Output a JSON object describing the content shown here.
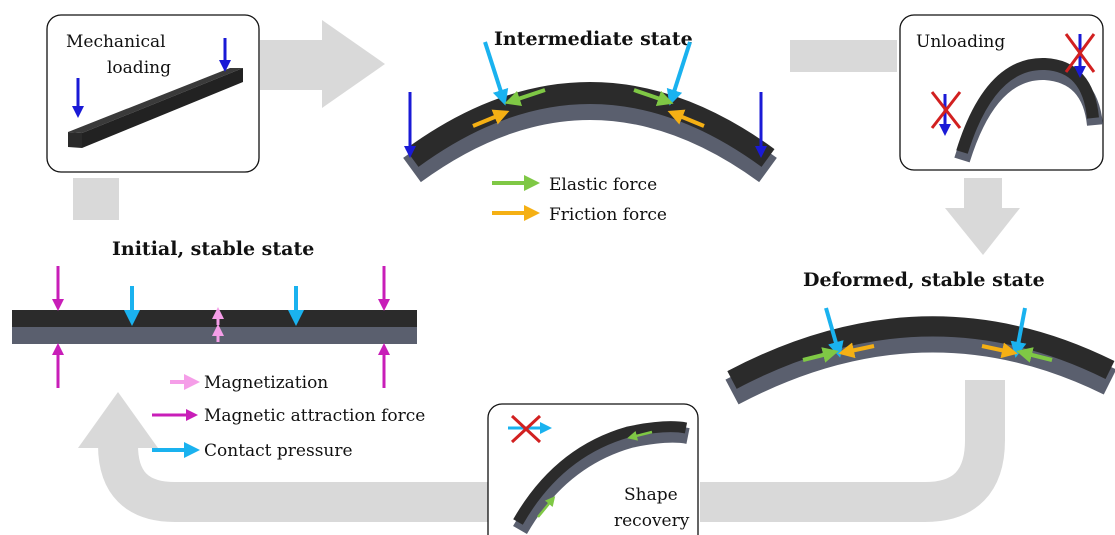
{
  "titles": {
    "intermediate": "Intermediate state",
    "initial": "Initial, stable state",
    "deformed": "Deformed, stable state"
  },
  "boxes": {
    "loading_line1": "Mechanical",
    "loading_line2": "loading",
    "unloading": "Unloading",
    "recovery_line1": "Shape",
    "recovery_line2": "recovery"
  },
  "legend_top": {
    "elastic": "Elastic force",
    "friction": "Friction force"
  },
  "legend_bottom": {
    "magnetization": "Magnetization",
    "attraction": "Magnetic attraction force",
    "contact": "Contact pressure"
  },
  "colors": {
    "flow_arrow": "#d9d9d9",
    "beam_dark": "#2b2b2b",
    "beam_light": "#5a5f6e",
    "load_arrow": "#1a1ad6",
    "contact_arrow": "#1ab2ef",
    "elastic_arrow": "#7fc845",
    "friction_arrow": "#f5b014",
    "magnetization_arrow": "#f59ee8",
    "attraction_arrow": "#c81eb8",
    "cross": "#d22020"
  }
}
